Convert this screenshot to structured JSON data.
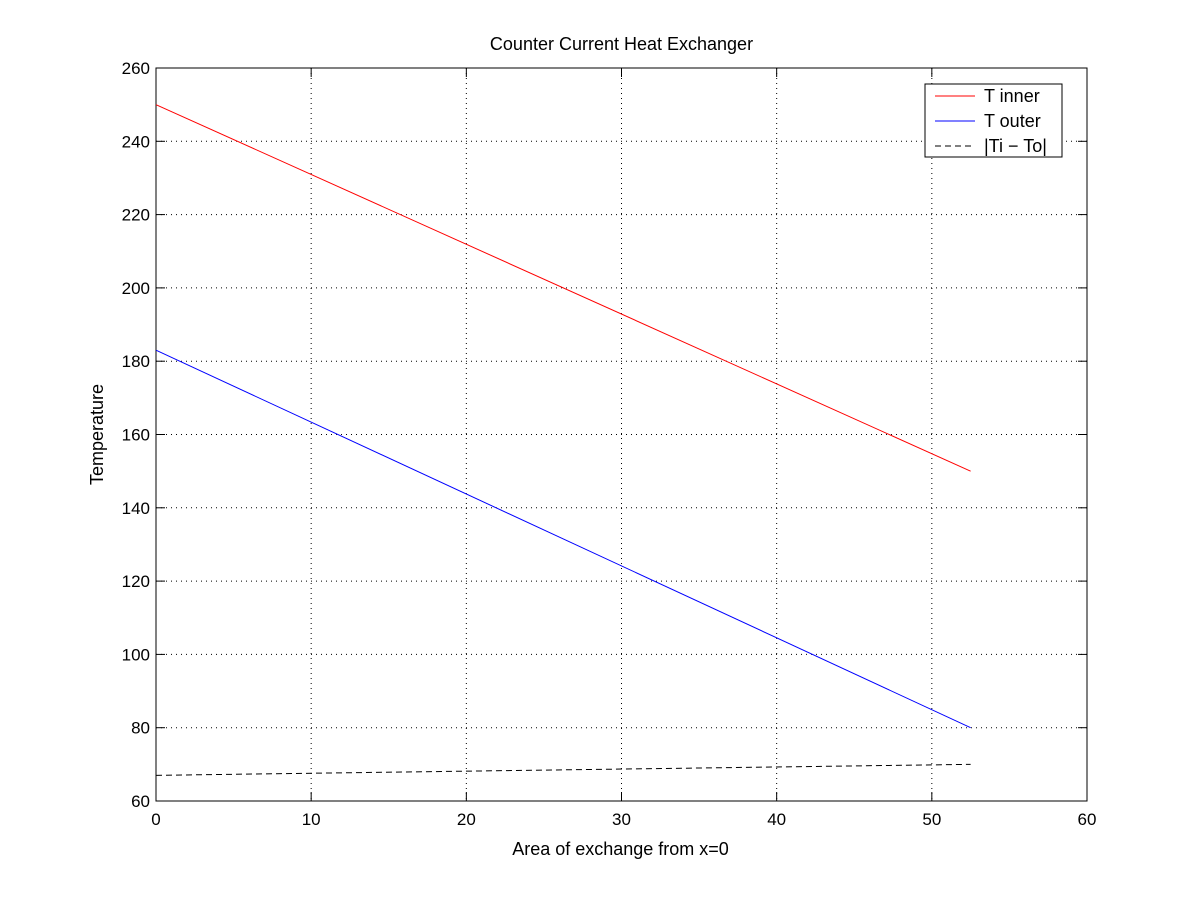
{
  "chart_data": {
    "type": "line",
    "title": "Counter Current Heat Exchanger",
    "xlabel": "Area of exchange from x=0",
    "ylabel": "Temperature",
    "xlim": [
      0,
      60
    ],
    "ylim": [
      60,
      260
    ],
    "xticks": [
      0,
      10,
      20,
      30,
      40,
      50,
      60
    ],
    "yticks": [
      60,
      80,
      100,
      120,
      140,
      160,
      180,
      200,
      220,
      240,
      260
    ],
    "grid": true,
    "legend_position": "top-right",
    "series": [
      {
        "name": "T inner",
        "color": "#ff0000",
        "style": "solid",
        "x": [
          0,
          52.5
        ],
        "y": [
          250,
          150
        ]
      },
      {
        "name": "T outer",
        "color": "#0000ff",
        "style": "solid",
        "x": [
          0,
          52.5
        ],
        "y": [
          183,
          80
        ]
      },
      {
        "name": "|Ti − To|",
        "color": "#000000",
        "style": "dashed",
        "x": [
          0,
          52.5
        ],
        "y": [
          67,
          70
        ]
      }
    ]
  }
}
